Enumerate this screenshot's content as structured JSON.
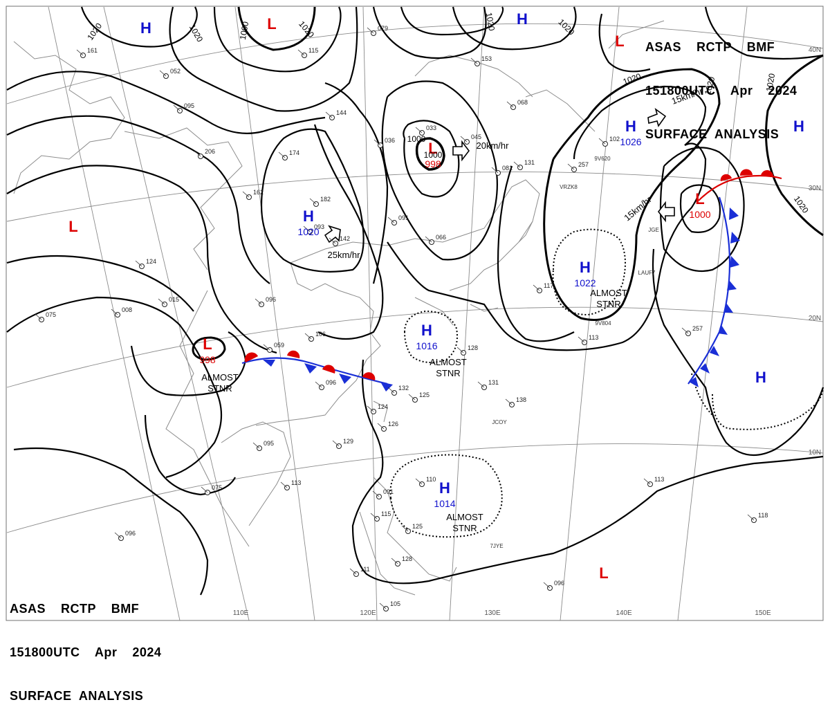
{
  "header": {
    "line1": "ASAS    RCTP    BMF",
    "line2": "151800UTC    Apr    2024",
    "line3": "SURFACE  ANALYSIS"
  },
  "footer": {
    "line1": "ASAS    RCTP    BMF",
    "line2": "151800UTC    Apr    2024",
    "line3": "SURFACE  ANALYSIS"
  },
  "pressure_centers": [
    {
      "type": "H",
      "value": "",
      "color": "#1010cc"
    },
    {
      "type": "L",
      "value": "",
      "color": "#dd0000"
    },
    {
      "type": "H",
      "value": "",
      "color": "#1010cc"
    },
    {
      "type": "L",
      "value": "",
      "color": "#dd0000"
    },
    {
      "type": "H",
      "value": "1026",
      "color": "#1010cc"
    },
    {
      "type": "H",
      "value": "",
      "color": "#1010cc"
    },
    {
      "type": "L",
      "value": "998",
      "color": "#dd0000"
    },
    {
      "type": "H",
      "value": "1020",
      "color": "#1010cc"
    },
    {
      "type": "L",
      "value": "",
      "color": "#dd0000"
    },
    {
      "type": "L",
      "value": "1000",
      "color": "#dd0000"
    },
    {
      "type": "H",
      "value": "1022",
      "color": "#1010cc"
    },
    {
      "type": "L",
      "value": "998",
      "color": "#dd0000"
    },
    {
      "type": "H",
      "value": "1016",
      "color": "#1010cc"
    },
    {
      "type": "H",
      "value": "",
      "color": "#1010cc"
    },
    {
      "type": "H",
      "value": "1014",
      "color": "#1010cc"
    },
    {
      "type": "L",
      "value": "",
      "color": "#dd0000"
    }
  ],
  "isobar_labels": [
    "1020",
    "1020",
    "1000",
    "1020",
    "1020",
    "1020",
    "1020",
    "1020",
    "1000",
    "1000",
    "1020",
    "1020"
  ],
  "movement_labels": [
    "20km/hr",
    "15km/hr",
    "25km/hr",
    "15km/hr"
  ],
  "stationary_notes": [
    {
      "line1": "ALMOST",
      "line2": "STNR"
    },
    {
      "line1": "ALMOST",
      "line2": "STNR"
    },
    {
      "line1": "ALMOST",
      "line2": "STNR"
    },
    {
      "line1": "ALMOST",
      "line2": "STNR"
    }
  ],
  "latitude_labels": [
    "40N",
    "30N",
    "20N",
    "10N"
  ],
  "longitude_labels": [
    "110E",
    "120E",
    "130E",
    "140E",
    "150E"
  ],
  "ship_callsigns": [
    "9V620",
    "VRZK8",
    "9V804",
    "JGE",
    "LAUF7",
    "JCOY",
    "7JYE"
  ],
  "station_values": [
    "161",
    "052",
    "095",
    "144",
    "206",
    "174",
    "182",
    "162",
    "093",
    "142",
    "124",
    "008",
    "075",
    "015",
    "096",
    "106",
    "059",
    "096",
    "132",
    "124",
    "126",
    "125",
    "129",
    "095",
    "113",
    "110",
    "091",
    "115",
    "125",
    "128",
    "111",
    "105",
    "075",
    "096",
    "138",
    "131",
    "113",
    "128",
    "033",
    "045",
    "066",
    "091",
    "081",
    "131",
    "153",
    "068",
    "102",
    "257",
    "257",
    "117",
    "113",
    "118",
    "096",
    "115",
    "079",
    "036"
  ],
  "colors": {
    "isobar": "#000000",
    "low": "#dd0000",
    "high": "#1010cc",
    "cold_front": "#1a2fd6",
    "warm_front": "#dd0000",
    "graticule": "#8a8a8a",
    "coast": "#8c8c8c"
  }
}
